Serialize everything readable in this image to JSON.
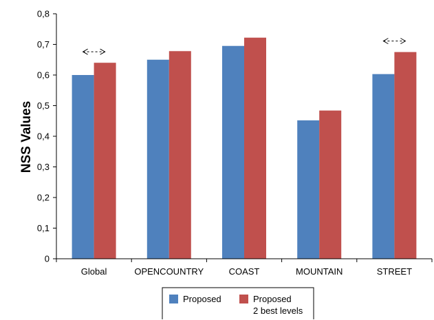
{
  "chart_data": {
    "type": "bar",
    "categories": [
      "Global",
      "OPENCOUNTRY",
      "COAST",
      "MOUNTAIN",
      "STREET"
    ],
    "series": [
      {
        "name": "Proposed",
        "values": [
          0.6,
          0.65,
          0.695,
          0.452,
          0.603
        ]
      },
      {
        "name": "Proposed 2 best levels",
        "values": [
          0.64,
          0.678,
          0.722,
          0.484,
          0.675
        ]
      }
    ],
    "series_legend_lines": [
      [
        "Proposed"
      ],
      [
        "Proposed",
        "2 best levels"
      ]
    ],
    "title": "",
    "xlabel": "",
    "ylabel": "NSS Values",
    "ylim": [
      0,
      0.8
    ],
    "yticks": [
      "0",
      "0,1",
      "0,2",
      "0,3",
      "0,4",
      "0,5",
      "0,6",
      "0,7",
      "0,8"
    ],
    "grid": false,
    "legend_position": "bottom-center",
    "annotations": [
      {
        "type": "double-arrow",
        "category": "Global"
      },
      {
        "type": "double-arrow",
        "category": "STREET"
      }
    ],
    "colors": [
      "#4f81bd",
      "#c0504d"
    ]
  }
}
